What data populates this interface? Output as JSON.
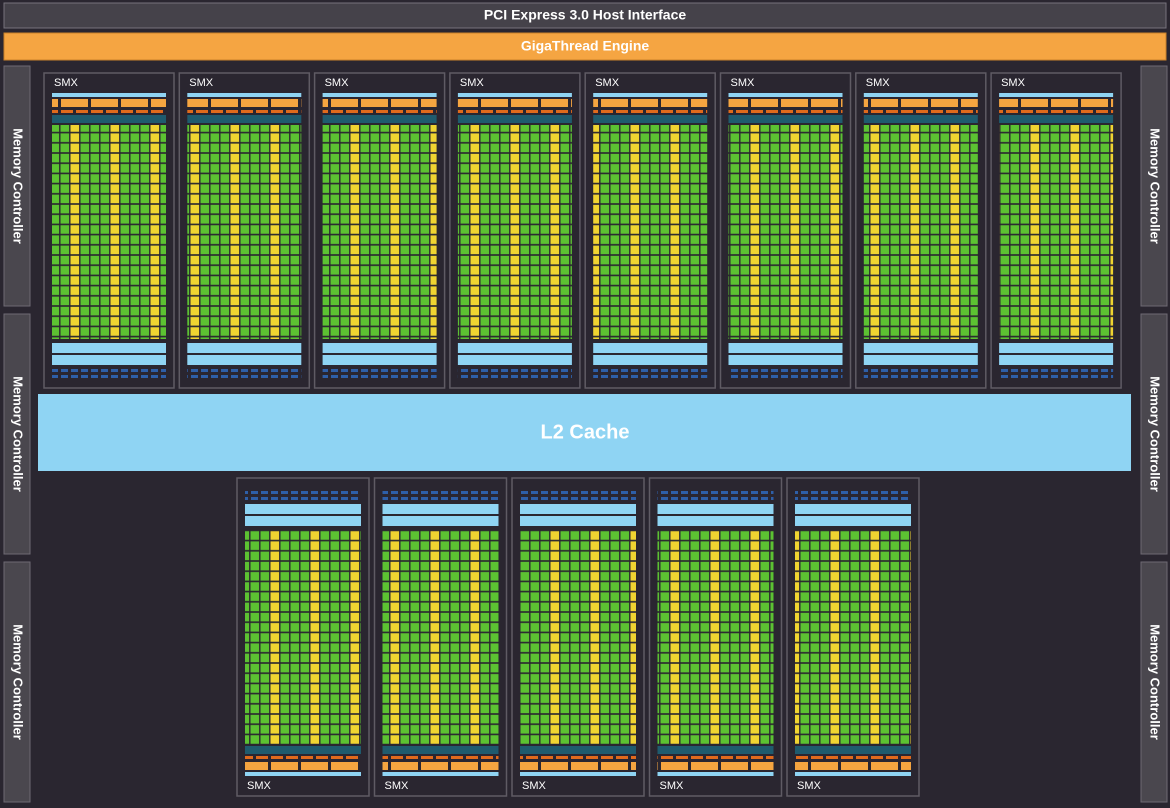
{
  "header": {
    "host_interface": "PCI Express 3.0 Host Interface",
    "engine": "GigaThread Engine"
  },
  "memory_controllers": {
    "left": [
      "Memory Controller",
      "Memory Controller",
      "Memory Controller"
    ],
    "right": [
      "Memory Controller",
      "Memory Controller",
      "Memory Controller"
    ]
  },
  "smx_top": [
    "SMX",
    "SMX",
    "SMX",
    "SMX",
    "SMX",
    "SMX",
    "SMX",
    "SMX"
  ],
  "l2_cache": "L2 Cache",
  "smx_bottom": [
    "SMX",
    "SMX",
    "SMX",
    "SMX",
    "SMX"
  ]
}
